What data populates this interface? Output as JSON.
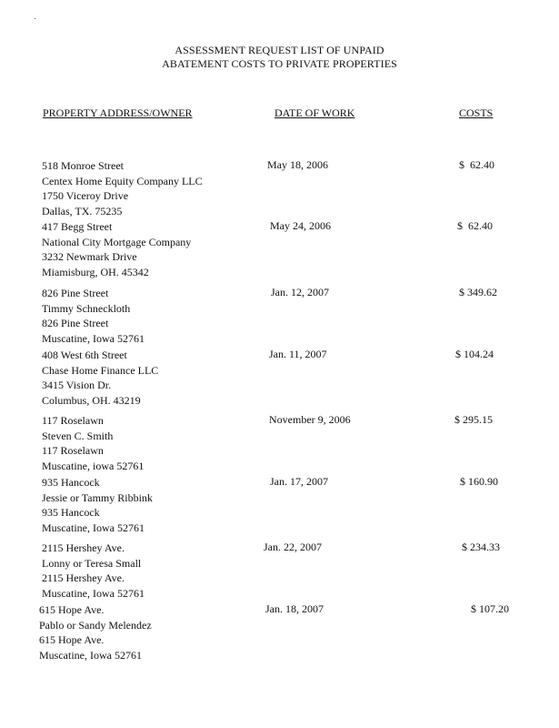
{
  "title_lines": [
    "ASSESSMENT REQUEST LIST OF UNPAID",
    "ABATEMENT COSTS TO PRIVATE PROPERTIES"
  ],
  "columns": {
    "address": "PROPERTY ADDRESS/OWNER",
    "date": "DATE OF WORK",
    "costs": "COSTS"
  },
  "entries": [
    {
      "lines": [
        "518 Monroe Street",
        "Centex Home Equity Company LLC",
        "1750 Viceroy Drive",
        "Dallas, TX. 75235"
      ],
      "date": "May 18, 2006",
      "cost": "$  62.40"
    },
    {
      "lines": [
        "417 Begg Street",
        "National City Mortgage Company",
        "3232 Newmark Drive",
        "Miamisburg, OH. 45342"
      ],
      "date": "May 24, 2006",
      "cost": "$  62.40"
    },
    {
      "lines": [
        "826 Pine Street",
        "Timmy Schneckloth",
        "826 Pine Street",
        "Muscatine, Iowa 52761"
      ],
      "date": "Jan. 12, 2007",
      "cost": "$ 349.62"
    },
    {
      "lines": [
        "408 West 6th Street",
        "Chase Home Finance LLC",
        "3415 Vision Dr.",
        "Columbus, OH. 43219"
      ],
      "date": "Jan. 11, 2007",
      "cost": "$ 104.24"
    },
    {
      "lines": [
        "117 Roselawn",
        "Steven C. Smith",
        "117 Roselawn",
        "Muscatine, iowa 52761"
      ],
      "date": "November 9, 2006",
      "cost": "$ 295.15"
    },
    {
      "lines": [
        "935 Hancock",
        "Jessie or Tammy Ribbink",
        "935 Hancock",
        "Muscatine, Iowa 52761"
      ],
      "date": "Jan. 17, 2007",
      "cost": "$ 160.90"
    },
    {
      "lines": [
        "2115 Hershey Ave.",
        "Lonny or Teresa Small",
        "2115 Hershey Ave.",
        "Muscatine, Iowa 52761"
      ],
      "date": "Jan. 22, 2007",
      "cost": "$ 234.33"
    },
    {
      "lines": [
        "615 Hope Ave.",
        "Pablo or Sandy Melendez",
        "615 Hope Ave.",
        "Muscatine, Iowa 52761"
      ],
      "date": "Jan. 18, 2007",
      "cost": "$ 107.20"
    }
  ]
}
